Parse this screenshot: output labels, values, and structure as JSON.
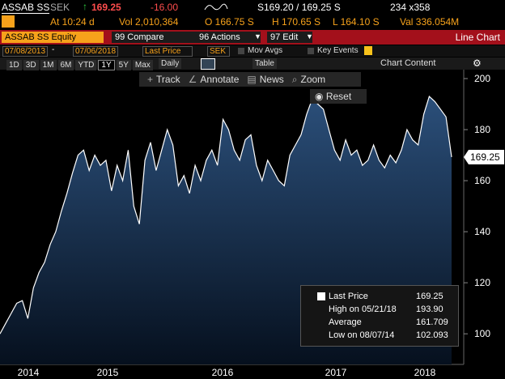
{
  "header": {
    "ticker": "ASSAB SS",
    "currency": "SEK",
    "price": "169.25",
    "change": "-16.00",
    "bid_ask": "S169.20 / 169.25 S",
    "size": "234 x358"
  },
  "quote": {
    "time": "At 10:24 d",
    "volume": "Vol 2,010,364",
    "open": "O 166.75 S",
    "high": "H 170.65 S",
    "low": "L 164.10 S",
    "value": "Val 336.054M"
  },
  "menu": {
    "security": "ASSAB SS Equity",
    "compare": "99 Compare",
    "actions": "96 Actions",
    "edit": "97 Edit",
    "view": "Line Chart"
  },
  "controls": {
    "start_date": "07/08/2013",
    "end_date": "07/06/2018",
    "field": "Last Price",
    "currency": "SEK",
    "mov_avgs": "Mov Avgs",
    "key_events": "Key Events"
  },
  "periods": [
    "1D",
    "3D",
    "1M",
    "6M",
    "YTD",
    "1Y",
    "5Y",
    "Max"
  ],
  "frequency": "Daily",
  "table": "Table",
  "chart_content": "Chart Content",
  "toolbar": [
    "Track",
    "Annotate",
    "News",
    "Zoom"
  ],
  "reset": "Reset",
  "legend": [
    {
      "label": "Last Price",
      "value": "169.25"
    },
    {
      "label": "High on 05/21/18",
      "value": "193.90"
    },
    {
      "label": "Average",
      "value": "161.709"
    },
    {
      "label": "Low on 08/07/14",
      "value": "102.093"
    }
  ],
  "chart_data": {
    "type": "area",
    "color": "#ffffff",
    "fill": "#1d3a60",
    "x_labels": [
      "2014",
      "2015",
      "2016",
      "2017",
      "2018"
    ],
    "values": [
      100,
      104,
      108,
      112,
      113,
      106,
      118,
      124,
      128,
      135,
      140,
      148,
      155,
      163,
      170,
      172,
      164,
      170,
      166,
      168,
      156,
      166,
      160,
      172,
      150,
      143,
      168,
      175,
      164,
      172,
      180,
      174,
      158,
      162,
      155,
      166,
      160,
      168,
      172,
      166,
      184,
      180,
      172,
      168,
      176,
      178,
      166,
      160,
      168,
      164,
      160,
      158,
      170,
      174,
      178,
      186,
      192,
      190,
      188,
      180,
      172,
      168,
      176,
      170,
      172,
      166,
      168,
      174,
      168,
      165,
      170,
      167,
      172,
      180,
      176,
      174,
      186,
      193,
      191,
      188,
      185,
      169.25
    ],
    "last_value": 169.25,
    "ylim": [
      88,
      203.5
    ],
    "yticks": [
      100,
      120,
      140,
      160,
      180,
      200
    ],
    "grid": false
  }
}
